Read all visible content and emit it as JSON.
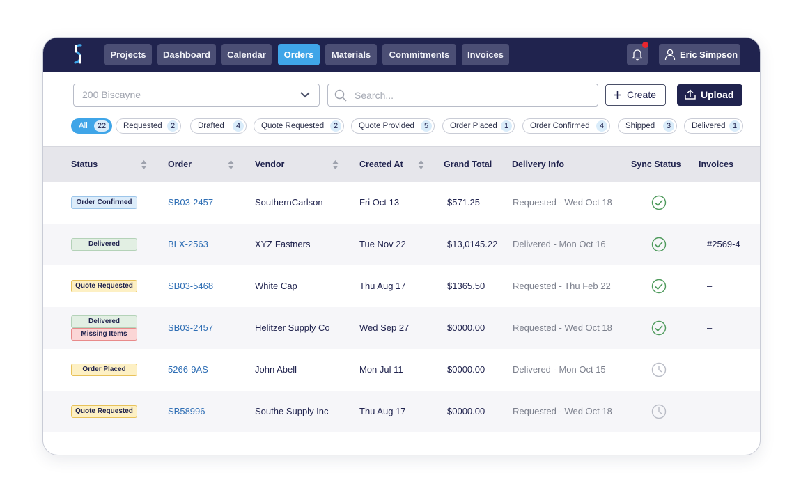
{
  "nav": {
    "items": [
      {
        "label": "Projects",
        "active": false
      },
      {
        "label": "Dashboard",
        "active": false
      },
      {
        "label": "Calendar",
        "active": false
      },
      {
        "label": "Orders",
        "active": true
      },
      {
        "label": "Materials",
        "active": false
      },
      {
        "label": "Commitments",
        "active": false
      },
      {
        "label": "Invoices",
        "active": false
      }
    ],
    "user_name": "Eric Simpson",
    "has_notification": true
  },
  "toolbar": {
    "project_select": "200 Biscayne",
    "search_placeholder": "Search...",
    "create_label": "Create",
    "upload_label": "Upload"
  },
  "filters": [
    {
      "label": "All",
      "count": "22",
      "active": true
    },
    {
      "label": "Requested",
      "count": "2",
      "active": false
    },
    {
      "label": "Drafted",
      "count": "4",
      "active": false
    },
    {
      "label": "Quote Requested",
      "count": "2",
      "active": false
    },
    {
      "label": "Quote Provided",
      "count": "5",
      "active": false
    },
    {
      "label": "Order Placed",
      "count": "1",
      "active": false
    },
    {
      "label": "Order Confirmed",
      "count": "4",
      "active": false
    },
    {
      "label": "Shipped",
      "count": "3",
      "active": false
    },
    {
      "label": "Delivered",
      "count": "1",
      "active": false
    }
  ],
  "table": {
    "columns": {
      "status": "Status",
      "order": "Order",
      "vendor": "Vendor",
      "created": "Created At",
      "total": "Grand Total",
      "delivery": "Delivery Info",
      "sync": "Sync Status",
      "invoices": "Invoices"
    },
    "rows": [
      {
        "statuses": [
          {
            "label": "Order Confirmed",
            "kind": "confirmed"
          }
        ],
        "order": "SB03-2457",
        "vendor": "SouthernCarlson",
        "created": "Fri Oct 13",
        "total": "$571.25",
        "delivery": "Requested - Wed Oct 18",
        "sync": "synced",
        "invoice": "–"
      },
      {
        "statuses": [
          {
            "label": "Delivered",
            "kind": "delivered"
          }
        ],
        "order": "BLX-2563",
        "vendor": "XYZ Fastners",
        "created": "Tue Nov 22",
        "total": "$13,0145.22",
        "delivery": "Delivered - Mon Oct 16",
        "sync": "synced",
        "invoice": "#2569-4"
      },
      {
        "statuses": [
          {
            "label": "Quote Requested",
            "kind": "quote"
          }
        ],
        "order": "SB03-5468",
        "vendor": "White Cap",
        "created": "Thu Aug 17",
        "total": "$1365.50",
        "delivery": "Requested - Thu Feb 22",
        "sync": "synced",
        "invoice": "–"
      },
      {
        "statuses": [
          {
            "label": "Delivered",
            "kind": "delivered"
          },
          {
            "label": "Missing Items",
            "kind": "missing"
          }
        ],
        "order": "SB03-2457",
        "vendor": "Helitzer Supply Co",
        "created": "Wed Sep 27",
        "total": "$0000.00",
        "delivery": "Requested - Wed Oct 18",
        "sync": "synced",
        "invoice": "–"
      },
      {
        "statuses": [
          {
            "label": "Order Placed",
            "kind": "placed"
          }
        ],
        "order": "5266-9AS",
        "vendor": "John Abell",
        "created": "Mon Jul 11",
        "total": "$0000.00",
        "delivery": "Delivered - Mon Oct 15",
        "sync": "pending",
        "invoice": "–"
      },
      {
        "statuses": [
          {
            "label": "Quote Requested",
            "kind": "quote"
          }
        ],
        "order": "SB58996",
        "vendor": "Southe Supply Inc",
        "created": "Thu Aug 17",
        "total": "$0000.00",
        "delivery": "Requested - Wed Oct 18",
        "sync": "pending",
        "invoice": "–"
      }
    ]
  }
}
